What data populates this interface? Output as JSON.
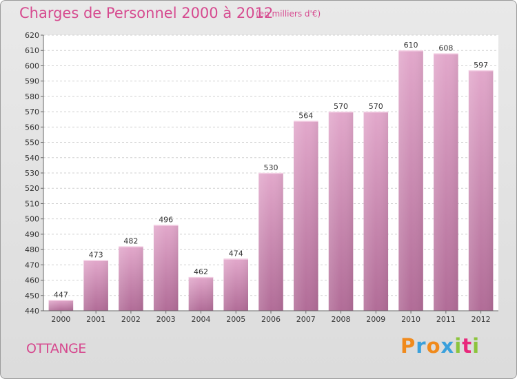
{
  "header": {
    "title": "Charges de Personnel 2000 à 2012",
    "subtitle": "(en milliers d'€)"
  },
  "footer": {
    "commune": "OTTANGE",
    "logo": {
      "letters": [
        "P",
        "r",
        "o",
        "x",
        "i",
        "t",
        "i"
      ],
      "colors": [
        "#f08a1c",
        "#3aa0dc",
        "#f08a1c",
        "#3aa0dc",
        "#8cc43c",
        "#e8287c",
        "#8cc43c"
      ]
    }
  },
  "chart_data": {
    "type": "bar",
    "categories": [
      "2000",
      "2001",
      "2002",
      "2003",
      "2004",
      "2005",
      "2006",
      "2007",
      "2008",
      "2009",
      "2010",
      "2011",
      "2012"
    ],
    "values": [
      447,
      473,
      482,
      496,
      462,
      474,
      530,
      564,
      570,
      570,
      610,
      608,
      597
    ],
    "data_labels": [
      "447",
      "473",
      "482",
      "496",
      "462",
      "474",
      "530",
      "564",
      "570",
      "570",
      "610",
      "608",
      "597"
    ],
    "title": "Charges de Personnel 2000 à 2012",
    "subtitle": "(en milliers d'€)",
    "xlabel": "",
    "ylabel": "",
    "ylim": [
      440,
      620
    ],
    "yticks": [
      440,
      450,
      460,
      470,
      480,
      490,
      500,
      510,
      520,
      530,
      540,
      550,
      560,
      570,
      580,
      590,
      600,
      610,
      620
    ],
    "grid": true,
    "bar_color": "#dd9ec4",
    "bar_color_dark": "#b66f9a"
  }
}
